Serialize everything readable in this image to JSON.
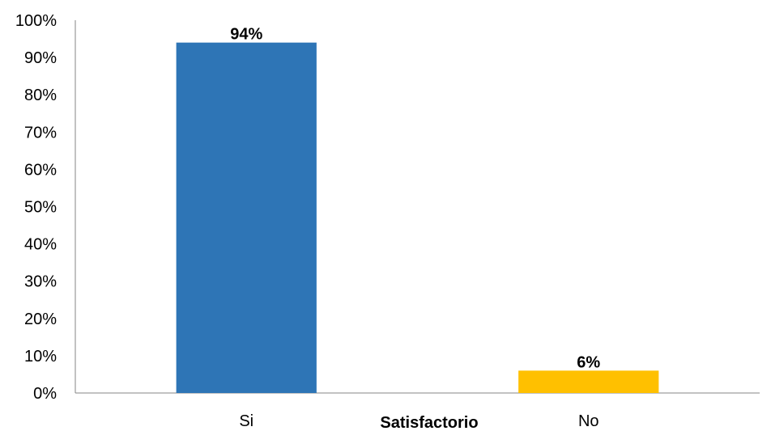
{
  "chart_data": {
    "type": "bar",
    "categories": [
      "Si",
      "No"
    ],
    "values": [
      94,
      6
    ],
    "data_labels": [
      "94%",
      "6%"
    ],
    "colors": [
      "#2E75B6",
      "#FFC000"
    ],
    "title": "",
    "xlabel": "Satisfactorio",
    "ylabel": "",
    "ylim": [
      0,
      100
    ],
    "ytick_labels": [
      "0%",
      "10%",
      "20%",
      "30%",
      "40%",
      "50%",
      "60%",
      "70%",
      "80%",
      "90%",
      "100%"
    ],
    "grid": false,
    "legend": "none"
  }
}
